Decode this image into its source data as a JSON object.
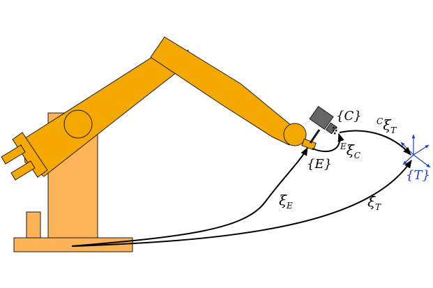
{
  "colors": {
    "robot_dark": "#F5A800",
    "robot_light": "#FDB358",
    "outline": "#1a1a1a",
    "camera": "#666666",
    "frame_blue": "#1E3FD0",
    "arrow": "#000000"
  },
  "labels": {
    "camera_frame": "{C}",
    "effector_frame": "{E}",
    "target_frame": "{T}",
    "xi_E_base": "ξ",
    "xi_E_sub": "E",
    "xi_T_base": "ξ",
    "xi_T_sub": "T",
    "xi_EC_sup": "E",
    "xi_EC_base": "ξ",
    "xi_EC_sub": "C",
    "xi_CT_sup": "C",
    "xi_CT_base": "ξ",
    "xi_CT_sub": "T"
  },
  "icons": {
    "camera": "camera-icon",
    "target_axes": "coordinate-axes-icon"
  }
}
